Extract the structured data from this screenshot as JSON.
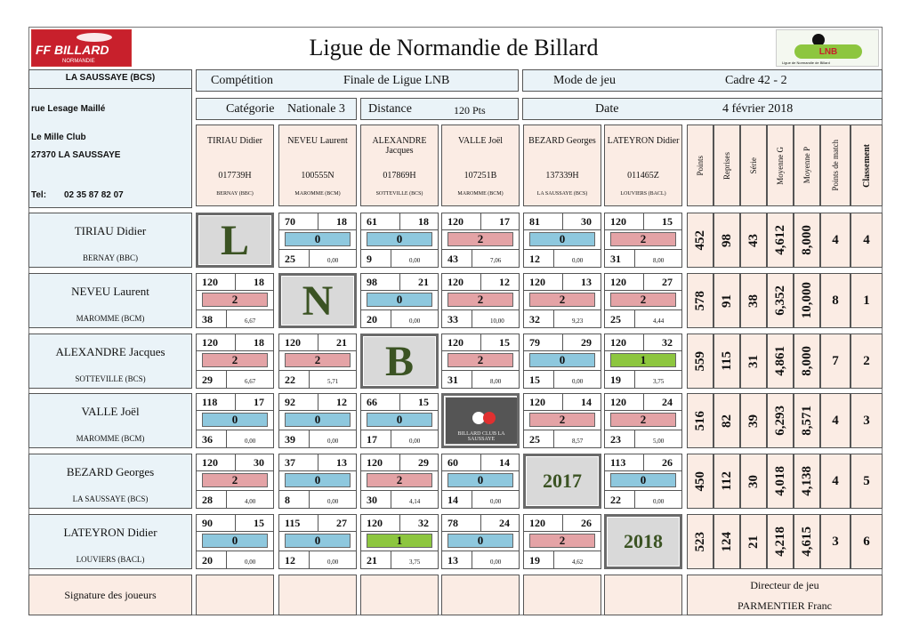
{
  "header": {
    "title": "Ligue de Normandie de Billard",
    "ff_logo_text": "FF BILLARD",
    "ff_logo_sub": "NORMANDIE",
    "lnb_logo_text": "LNB",
    "lnb_logo_caption": "Ligue de Normandie de Billard"
  },
  "club": {
    "name": "LA SAUSSAYE (BCS)",
    "street": "rue Lesage Maillé",
    "place": "Le Mille Club",
    "city": "27370 LA SAUSSAYE",
    "tel_label": "Tel:",
    "tel": "02 35 87 82 07"
  },
  "info": {
    "competition_label": "Compétition",
    "competition": "Finale de Ligue LNB",
    "mode_label": "Mode de jeu",
    "mode": "Cadre 42 - 2",
    "categorie_label": "Catégorie",
    "categorie": "Nationale 3",
    "distance_label": "Distance",
    "distance": "120 Pts",
    "date_label": "Date",
    "date": "4 février 2018"
  },
  "columns": [
    {
      "name": "TIRIAU Didier",
      "license": "017739H",
      "club": "BERNAY (BBC)"
    },
    {
      "name": "NEVEU Laurent",
      "license": "100555N",
      "club": "MAROMME (BCM)"
    },
    {
      "name": "ALEXANDRE Jacques",
      "license": "017869H",
      "club": "SOTTEVILLE (BCS)"
    },
    {
      "name": "VALLE Joël",
      "license": "107251B",
      "club": "MAROMME (BCM)"
    },
    {
      "name": "BEZARD Georges",
      "license": "137339H",
      "club": "LA SAUSSAYE (BCS)"
    },
    {
      "name": "LATEYRON Didier",
      "license": "011465Z",
      "club": "LOUVIERS (BACL)"
    }
  ],
  "stat_headers": [
    "Points",
    "Reprises",
    "Série",
    "Moyenne G",
    "Moyenne P",
    "Points de match",
    "Classement"
  ],
  "diagonal": [
    "L",
    "N",
    "B",
    "BILLARD CLUB LA SAUSSAYE",
    "2017",
    "2018"
  ],
  "rows": [
    {
      "name": "TIRIAU Didier",
      "club": "BERNAY (BBC)",
      "matches": [
        null,
        {
          "p": "70",
          "s": "18",
          "r": "25",
          "m": "0,00",
          "pts": "0"
        },
        {
          "p": "61",
          "s": "18",
          "r": "9",
          "m": "0,00",
          "pts": "0"
        },
        {
          "p": "120",
          "s": "17",
          "r": "43",
          "m": "7,06",
          "pts": "2"
        },
        {
          "p": "81",
          "s": "30",
          "r": "12",
          "m": "0,00",
          "pts": "0"
        },
        {
          "p": "120",
          "s": "15",
          "r": "31",
          "m": "8,00",
          "pts": "2"
        }
      ],
      "stats": [
        "452",
        "98",
        "43",
        "4,612",
        "8,000",
        "4",
        "4"
      ]
    },
    {
      "name": "NEVEU Laurent",
      "club": "MAROMME (BCM)",
      "matches": [
        {
          "p": "120",
          "s": "18",
          "r": "38",
          "m": "6,67",
          "pts": "2"
        },
        null,
        {
          "p": "98",
          "s": "21",
          "r": "20",
          "m": "0,00",
          "pts": "0"
        },
        {
          "p": "120",
          "s": "12",
          "r": "33",
          "m": "10,00",
          "pts": "2"
        },
        {
          "p": "120",
          "s": "13",
          "r": "32",
          "m": "9,23",
          "pts": "2"
        },
        {
          "p": "120",
          "s": "27",
          "r": "25",
          "m": "4,44",
          "pts": "2"
        }
      ],
      "stats": [
        "578",
        "91",
        "38",
        "6,352",
        "10,000",
        "8",
        "1"
      ]
    },
    {
      "name": "ALEXANDRE Jacques",
      "club": "SOTTEVILLE (BCS)",
      "matches": [
        {
          "p": "120",
          "s": "18",
          "r": "29",
          "m": "6,67",
          "pts": "2"
        },
        {
          "p": "120",
          "s": "21",
          "r": "22",
          "m": "5,71",
          "pts": "2"
        },
        null,
        {
          "p": "120",
          "s": "15",
          "r": "31",
          "m": "8,00",
          "pts": "2"
        },
        {
          "p": "79",
          "s": "29",
          "r": "15",
          "m": "0,00",
          "pts": "0"
        },
        {
          "p": "120",
          "s": "32",
          "r": "19",
          "m": "3,75",
          "pts": "1"
        }
      ],
      "stats": [
        "559",
        "115",
        "31",
        "4,861",
        "8,000",
        "7",
        "2"
      ]
    },
    {
      "name": "VALLE Joël",
      "club": "MAROMME (BCM)",
      "matches": [
        {
          "p": "118",
          "s": "17",
          "r": "36",
          "m": "0,00",
          "pts": "0"
        },
        {
          "p": "92",
          "s": "12",
          "r": "39",
          "m": "0,00",
          "pts": "0"
        },
        {
          "p": "66",
          "s": "15",
          "r": "17",
          "m": "0,00",
          "pts": "0"
        },
        null,
        {
          "p": "120",
          "s": "14",
          "r": "25",
          "m": "8,57",
          "pts": "2"
        },
        {
          "p": "120",
          "s": "24",
          "r": "23",
          "m": "5,00",
          "pts": "2"
        }
      ],
      "stats": [
        "516",
        "82",
        "39",
        "6,293",
        "8,571",
        "4",
        "3"
      ]
    },
    {
      "name": "BEZARD Georges",
      "club": "LA SAUSSAYE (BCS)",
      "matches": [
        {
          "p": "120",
          "s": "30",
          "r": "28",
          "m": "4,00",
          "pts": "2"
        },
        {
          "p": "37",
          "s": "13",
          "r": "8",
          "m": "0,00",
          "pts": "0"
        },
        {
          "p": "120",
          "s": "29",
          "r": "30",
          "m": "4,14",
          "pts": "2"
        },
        {
          "p": "60",
          "s": "14",
          "r": "14",
          "m": "0,00",
          "pts": "0"
        },
        null,
        {
          "p": "113",
          "s": "26",
          "r": "22",
          "m": "0,00",
          "pts": "0"
        }
      ],
      "stats": [
        "450",
        "112",
        "30",
        "4,018",
        "4,138",
        "4",
        "5"
      ]
    },
    {
      "name": "LATEYRON Didier",
      "club": "LOUVIERS (BACL)",
      "matches": [
        {
          "p": "90",
          "s": "15",
          "r": "20",
          "m": "0,00",
          "pts": "0"
        },
        {
          "p": "115",
          "s": "27",
          "r": "12",
          "m": "0,00",
          "pts": "0"
        },
        {
          "p": "120",
          "s": "32",
          "r": "21",
          "m": "3,75",
          "pts": "1"
        },
        {
          "p": "78",
          "s": "24",
          "r": "13",
          "m": "0,00",
          "pts": "0"
        },
        {
          "p": "120",
          "s": "26",
          "r": "19",
          "m": "4,62",
          "pts": "2"
        },
        null
      ],
      "stats": [
        "523",
        "124",
        "21",
        "4,218",
        "4,615",
        "3",
        "6"
      ]
    }
  ],
  "footer": {
    "signature_label": "Signature des joueurs",
    "director_label": "Directeur de jeu",
    "director": "PARMENTIER Franc"
  }
}
